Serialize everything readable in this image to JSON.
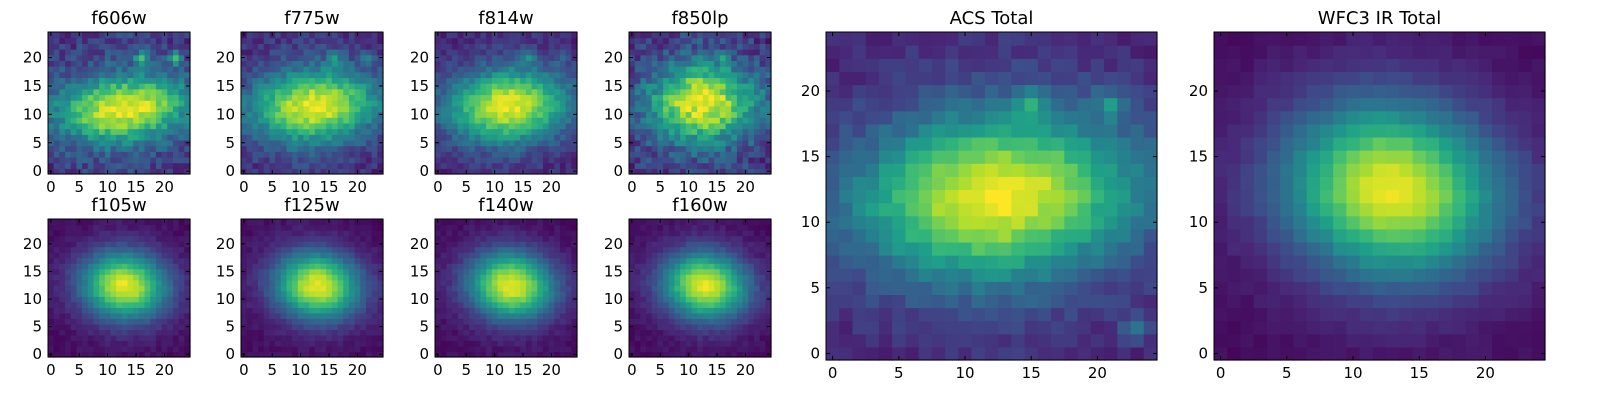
{
  "figure": {
    "type": "image-grid",
    "colormap": "viridis"
  },
  "chart_data": [
    {
      "type": "heatmap",
      "id": "f606w",
      "title": "f606w",
      "xlim": [
        0,
        24
      ],
      "ylim": [
        0,
        24
      ],
      "xticks": [
        "0",
        "5",
        "10",
        "15",
        "20"
      ],
      "yticks": [
        "0",
        "5",
        "10",
        "15",
        "20"
      ],
      "model": {
        "cx": 13,
        "cy": 11,
        "sx": 9,
        "sy": 4,
        "tilt": -0.15,
        "base": 0.22,
        "amp": 0.78,
        "noise": 0.1,
        "spots": [
          [
            16,
            20,
            0.5
          ],
          [
            22,
            20,
            0.45
          ]
        ]
      }
    },
    {
      "type": "heatmap",
      "id": "f775w",
      "title": "f775w",
      "xlim": [
        0,
        24
      ],
      "ylim": [
        0,
        24
      ],
      "xticks": [
        "0",
        "5",
        "10",
        "15",
        "20"
      ],
      "yticks": [
        "0",
        "5",
        "10",
        "15",
        "20"
      ],
      "model": {
        "cx": 12.5,
        "cy": 11.5,
        "sx": 8.5,
        "sy": 4.5,
        "tilt": -0.15,
        "base": 0.18,
        "amp": 0.8,
        "noise": 0.08,
        "spots": [
          [
            16,
            20,
            0.3
          ],
          [
            22,
            20,
            0.25
          ]
        ]
      }
    },
    {
      "type": "heatmap",
      "id": "f814w",
      "title": "f814w",
      "xlim": [
        0,
        24
      ],
      "ylim": [
        0,
        24
      ],
      "xticks": [
        "0",
        "5",
        "10",
        "15",
        "20"
      ],
      "yticks": [
        "0",
        "5",
        "10",
        "15",
        "20"
      ],
      "model": {
        "cx": 12.5,
        "cy": 11.5,
        "sx": 8,
        "sy": 4.5,
        "tilt": -0.15,
        "base": 0.16,
        "amp": 0.82,
        "noise": 0.07,
        "spots": [
          [
            16,
            20,
            0.25
          ],
          [
            22,
            20,
            0.2
          ]
        ]
      }
    },
    {
      "type": "heatmap",
      "id": "f850lp",
      "title": "f850lp",
      "xlim": [
        0,
        24
      ],
      "ylim": [
        0,
        24
      ],
      "xticks": [
        "0",
        "5",
        "10",
        "15",
        "20"
      ],
      "yticks": [
        "0",
        "5",
        "10",
        "15",
        "20"
      ],
      "model": {
        "cx": 12.5,
        "cy": 12,
        "sx": 7,
        "sy": 5,
        "tilt": -0.12,
        "base": 0.2,
        "amp": 0.78,
        "noise": 0.12,
        "spots": [
          [
            16,
            20,
            0.2
          ]
        ]
      }
    },
    {
      "type": "heatmap",
      "id": "f105w",
      "title": "f105w",
      "xlim": [
        0,
        24
      ],
      "ylim": [
        0,
        24
      ],
      "xticks": [
        "0",
        "5",
        "10",
        "15",
        "20"
      ],
      "yticks": [
        "0",
        "5",
        "10",
        "15",
        "20"
      ],
      "model": {
        "cx": 13,
        "cy": 12.5,
        "sx": 5.5,
        "sy": 4.5,
        "tilt": -0.2,
        "base": 0.05,
        "amp": 0.92,
        "noise": 0.03,
        "spots": []
      }
    },
    {
      "type": "heatmap",
      "id": "f125w",
      "title": "f125w",
      "xlim": [
        0,
        24
      ],
      "ylim": [
        0,
        24
      ],
      "xticks": [
        "0",
        "5",
        "10",
        "15",
        "20"
      ],
      "yticks": [
        "0",
        "5",
        "10",
        "15",
        "20"
      ],
      "model": {
        "cx": 13,
        "cy": 12.5,
        "sx": 5.5,
        "sy": 4.5,
        "tilt": -0.2,
        "base": 0.05,
        "amp": 0.92,
        "noise": 0.03,
        "spots": []
      }
    },
    {
      "type": "heatmap",
      "id": "f140w",
      "title": "f140w",
      "xlim": [
        0,
        24
      ],
      "ylim": [
        0,
        24
      ],
      "xticks": [
        "0",
        "5",
        "10",
        "15",
        "20"
      ],
      "yticks": [
        "0",
        "5",
        "10",
        "15",
        "20"
      ],
      "model": {
        "cx": 13,
        "cy": 12.5,
        "sx": 5.5,
        "sy": 4.5,
        "tilt": -0.2,
        "base": 0.05,
        "amp": 0.92,
        "noise": 0.03,
        "spots": []
      }
    },
    {
      "type": "heatmap",
      "id": "f160w",
      "title": "f160w",
      "xlim": [
        0,
        24
      ],
      "ylim": [
        0,
        24
      ],
      "xticks": [
        "0",
        "5",
        "10",
        "15",
        "20"
      ],
      "yticks": [
        "0",
        "5",
        "10",
        "15",
        "20"
      ],
      "model": {
        "cx": 13,
        "cy": 12.5,
        "sx": 5.5,
        "sy": 4.5,
        "tilt": -0.2,
        "base": 0.05,
        "amp": 0.92,
        "noise": 0.03,
        "spots": []
      }
    },
    {
      "type": "heatmap",
      "id": "acs-total",
      "title": "ACS Total",
      "xlim": [
        0,
        24
      ],
      "ylim": [
        0,
        24
      ],
      "xticks": [
        "0",
        "5",
        "10",
        "15",
        "20"
      ],
      "yticks": [
        "0",
        "5",
        "10",
        "15",
        "20"
      ],
      "model": {
        "cx": 12.5,
        "cy": 12,
        "sx": 8,
        "sy": 4.5,
        "tilt": -0.15,
        "base": 0.15,
        "amp": 0.85,
        "noise": 0.05,
        "spots": [
          [
            15,
            19,
            0.3
          ],
          [
            21,
            19,
            0.3
          ],
          [
            23,
            2,
            0.25
          ]
        ]
      }
    },
    {
      "type": "heatmap",
      "id": "wfc3-ir-total",
      "title": "WFC3 IR Total",
      "xlim": [
        0,
        24
      ],
      "ylim": [
        0,
        24
      ],
      "xticks": [
        "0",
        "5",
        "10",
        "15",
        "20"
      ],
      "yticks": [
        "0",
        "5",
        "10",
        "15",
        "20"
      ],
      "model": {
        "cx": 13,
        "cy": 12.5,
        "sx": 6,
        "sy": 5,
        "tilt": -0.2,
        "base": 0.05,
        "amp": 0.92,
        "noise": 0.02,
        "spots": []
      }
    }
  ]
}
